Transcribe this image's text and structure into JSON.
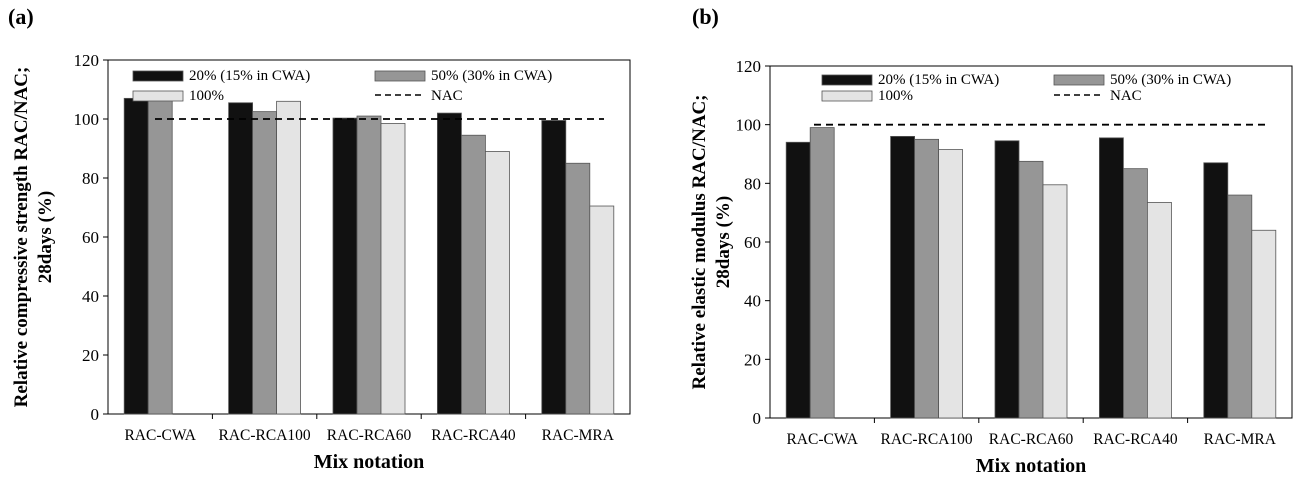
{
  "chart_data": [
    {
      "type": "bar",
      "panel_label": "(a)",
      "xlabel": "Mix notation",
      "ylabel": "Relative compressive strength RAC/NAC; 28days (%)",
      "ylabel_lines": [
        "Relative compressive strength RAC/NAC;",
        "28days (%)"
      ],
      "categories": [
        "RAC-CWA",
        "RAC-RCA100",
        "RAC-RCA60",
        "RAC-RCA40",
        "RAC-MRA"
      ],
      "ylim": [
        0,
        120
      ],
      "yticks": [
        0,
        20,
        40,
        60,
        80,
        100,
        120
      ],
      "ytick_labels": [
        "0",
        "20",
        "40",
        "60",
        "80",
        "100",
        "120"
      ],
      "grid": false,
      "legend_position": "top",
      "series": [
        {
          "name": "20% (15% in CWA)",
          "color": "#111111",
          "values": [
            107,
            105.5,
            100.3,
            102,
            99.5
          ]
        },
        {
          "name": "50% (30% in CWA)",
          "color": "#969696",
          "values": [
            106.5,
            102.5,
            101,
            94.5,
            85
          ]
        },
        {
          "name": "100%",
          "color": "#e4e4e4",
          "values": [
            null,
            106,
            98.5,
            89,
            70.5
          ]
        }
      ],
      "reference_line": {
        "name": "NAC",
        "value": 100
      }
    },
    {
      "type": "bar",
      "panel_label": "(b)",
      "xlabel": "Mix notation",
      "ylabel": "Relative elastic modulus RAC/NAC; 28days (%)",
      "ylabel_lines": [
        "Relative elastic modulus RAC/NAC;",
        "28days (%)"
      ],
      "categories": [
        "RAC-CWA",
        "RAC-RCA100",
        "RAC-RCA60",
        "RAC-RCA40",
        "RAC-MRA"
      ],
      "ylim": [
        0,
        120
      ],
      "yticks": [
        0,
        20,
        40,
        60,
        80,
        100,
        120
      ],
      "ytick_labels": [
        "0",
        "20",
        "40",
        "60",
        "80",
        "100",
        "120"
      ],
      "grid": false,
      "legend_position": "top",
      "series": [
        {
          "name": "20% (15% in CWA)",
          "color": "#111111",
          "values": [
            94,
            96,
            94.5,
            95.5,
            87
          ]
        },
        {
          "name": "50% (30% in CWA)",
          "color": "#969696",
          "values": [
            99,
            95,
            87.5,
            85,
            76
          ]
        },
        {
          "name": "100%",
          "color": "#e4e4e4",
          "values": [
            null,
            91.5,
            79.5,
            73.5,
            64
          ]
        }
      ],
      "reference_line": {
        "name": "NAC",
        "value": 100
      }
    }
  ]
}
